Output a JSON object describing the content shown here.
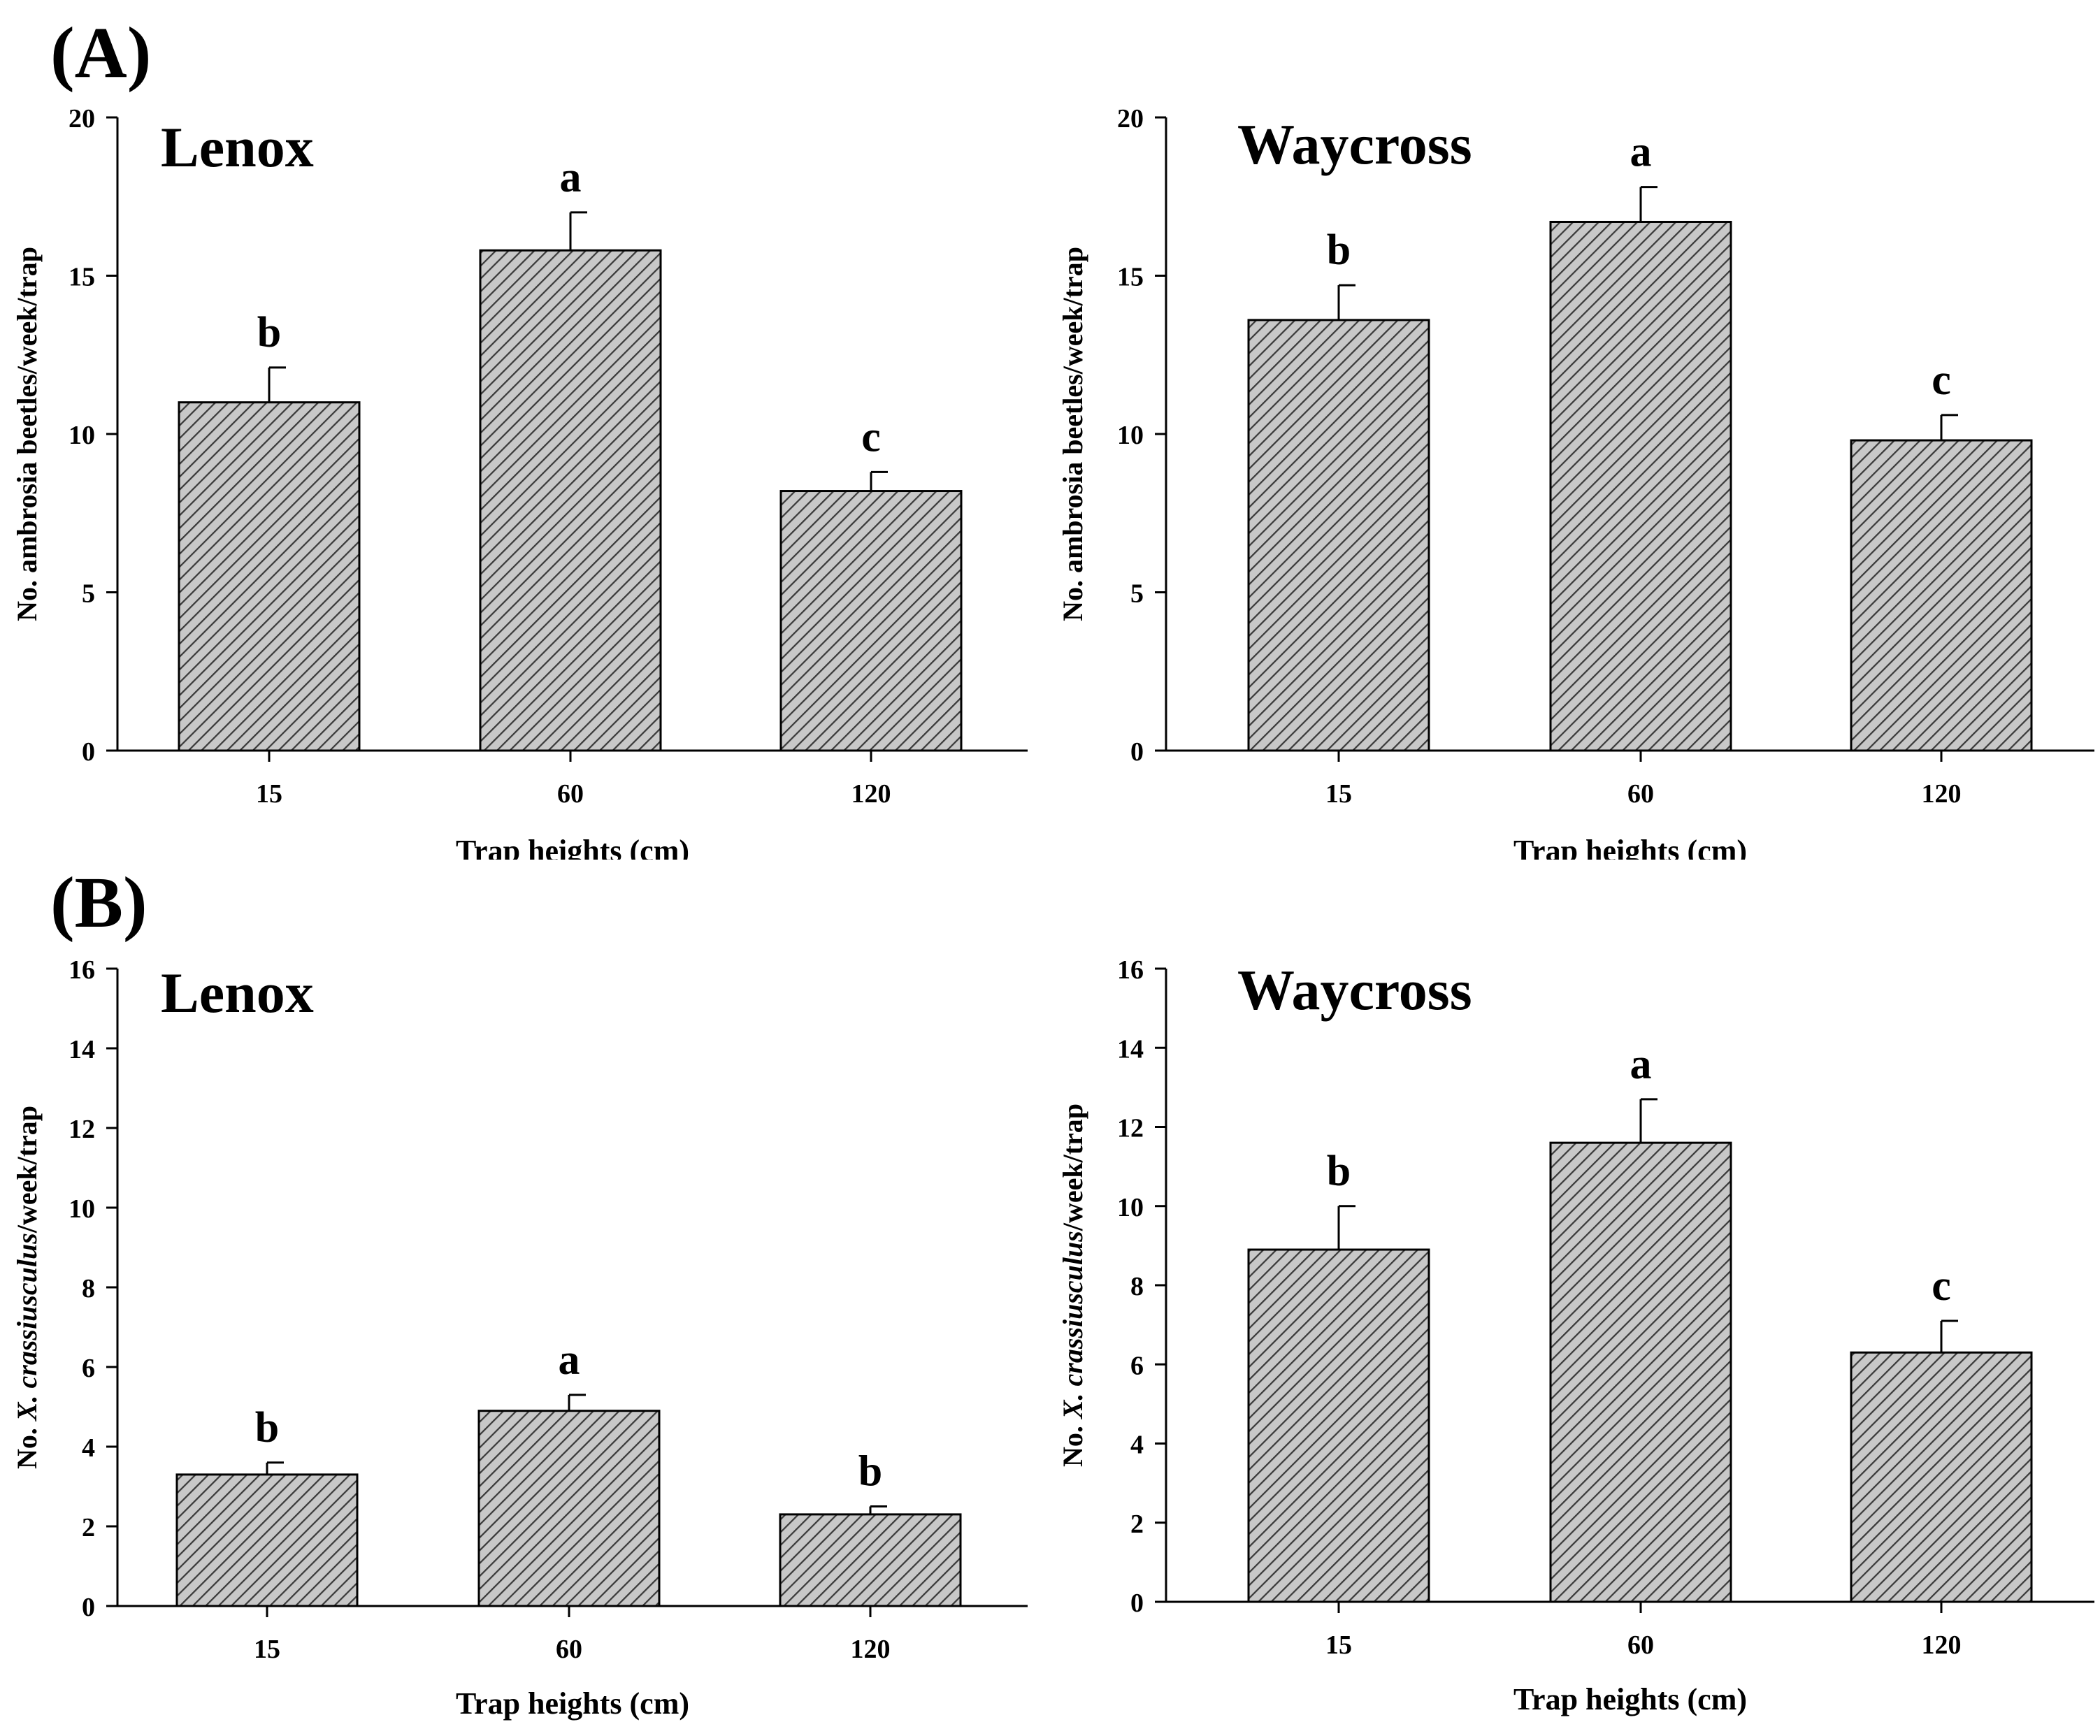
{
  "figure": {
    "panel_a_label": "(A)",
    "panel_b_label": "(B)"
  },
  "chart_data": [
    {
      "type": "bar",
      "panel": "A",
      "title": "Lenox",
      "xlabel": "Trap heights (cm)",
      "ylabel": "No. ambrosia beetles/week/trap",
      "categories": [
        "15",
        "60",
        "120"
      ],
      "values": [
        11.0,
        15.8,
        8.2
      ],
      "errors": [
        1.1,
        1.2,
        0.6
      ],
      "letters": [
        "b",
        "a",
        "c"
      ],
      "ylim": [
        0,
        20
      ],
      "yticks": [
        0,
        5,
        10,
        15,
        20
      ]
    },
    {
      "type": "bar",
      "panel": "A",
      "title": "Waycross",
      "xlabel": "Trap heights (cm)",
      "ylabel": "No. ambrosia beetles/week/trap",
      "categories": [
        "15",
        "60",
        "120"
      ],
      "values": [
        13.6,
        16.7,
        9.8
      ],
      "errors": [
        1.1,
        1.1,
        0.8
      ],
      "letters": [
        "b",
        "a",
        "c"
      ],
      "ylim": [
        0,
        20
      ],
      "yticks": [
        0,
        5,
        10,
        15,
        20
      ]
    },
    {
      "type": "bar",
      "panel": "B",
      "title": "Lenox",
      "xlabel": "Trap heights (cm)",
      "ylabel_prefix": "No. ",
      "ylabel_italic": "X. crassiusculus",
      "ylabel_suffix": "/week/trap",
      "categories": [
        "15",
        "60",
        "120"
      ],
      "values": [
        3.3,
        4.9,
        2.3
      ],
      "errors": [
        0.3,
        0.4,
        0.2
      ],
      "letters": [
        "b",
        "a",
        "b"
      ],
      "ylim": [
        0,
        16
      ],
      "yticks": [
        0,
        2,
        4,
        6,
        8,
        10,
        12,
        14,
        16
      ]
    },
    {
      "type": "bar",
      "panel": "B",
      "title": "Waycross",
      "xlabel": "Trap heights (cm)",
      "ylabel_prefix": "No. ",
      "ylabel_italic": "X. crassiusculus",
      "ylabel_suffix": "/week/trap",
      "categories": [
        "15",
        "60",
        "120"
      ],
      "values": [
        8.9,
        11.6,
        6.3
      ],
      "errors": [
        1.1,
        1.1,
        0.8
      ],
      "letters": [
        "b",
        "a",
        "c"
      ],
      "ylim": [
        0,
        16
      ],
      "yticks": [
        0,
        2,
        4,
        6,
        8,
        10,
        12,
        14,
        16
      ]
    }
  ],
  "colors": {
    "bar_fill": "#c8c8c8",
    "hatch": "#3a3a3a",
    "axis": "#000000"
  }
}
